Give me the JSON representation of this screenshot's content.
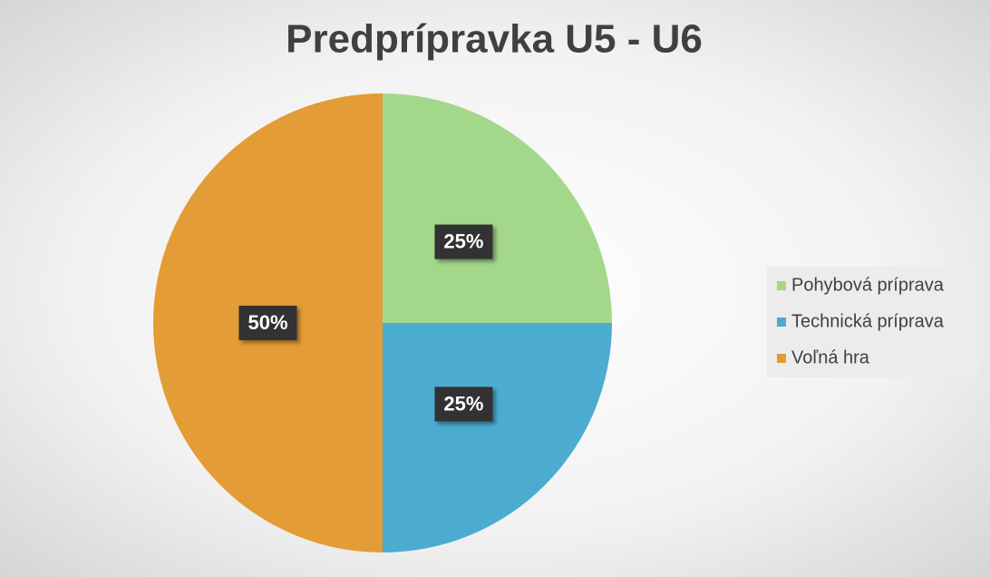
{
  "chart_data": {
    "type": "pie",
    "title": "Predprípravka U5 - U6",
    "categories": [
      "Pohybová príprava",
      "Technická príprava",
      "Voľná hra"
    ],
    "values": [
      25,
      25,
      50
    ],
    "value_labels": [
      "25%",
      "25%",
      "50%"
    ],
    "colors": [
      "#a3d78a",
      "#4bacd0",
      "#e39c36"
    ],
    "legend": "right"
  }
}
